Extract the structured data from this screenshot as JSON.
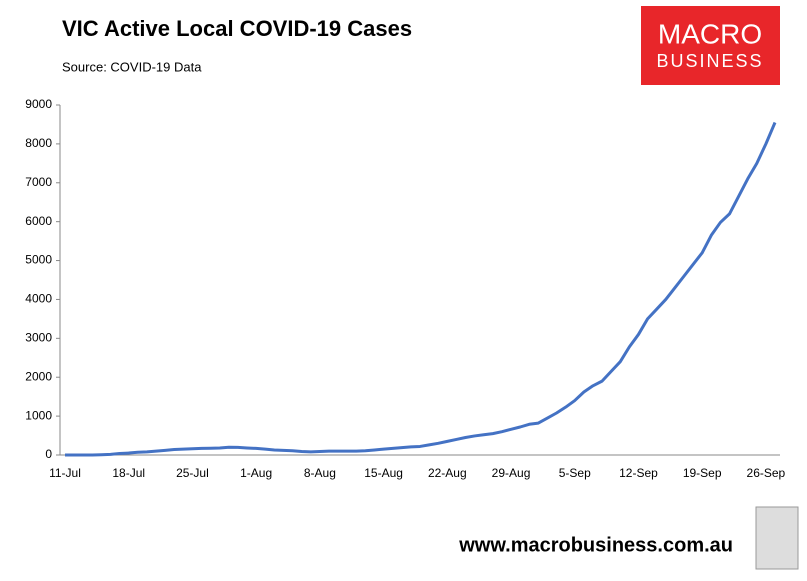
{
  "chart_data": {
    "type": "line",
    "title": "VIC Active Local COVID-19 Cases",
    "subtitle": "Source: COVID-19 Data",
    "categories": [
      "11-Jul",
      null,
      null,
      null,
      null,
      null,
      null,
      "18-Jul",
      null,
      null,
      null,
      null,
      null,
      null,
      "25-Jul",
      null,
      null,
      null,
      null,
      null,
      null,
      "1-Aug",
      null,
      null,
      null,
      null,
      null,
      null,
      "8-Aug",
      null,
      null,
      null,
      null,
      null,
      null,
      "15-Aug",
      null,
      null,
      null,
      null,
      null,
      null,
      "22-Aug",
      null,
      null,
      null,
      null,
      null,
      null,
      "29-Aug",
      null,
      null,
      null,
      null,
      null,
      null,
      "5-Sep",
      null,
      null,
      null,
      null,
      null,
      null,
      "12-Sep",
      null,
      null,
      null,
      null,
      null,
      null,
      "19-Sep",
      null,
      null,
      null,
      null,
      null,
      null,
      "26-Sep",
      null
    ],
    "series": [
      {
        "name": "Active local cases",
        "color": "#4472c4",
        "values": [
          0,
          0,
          0,
          0,
          5,
          15,
          40,
          50,
          70,
          80,
          100,
          120,
          140,
          150,
          160,
          170,
          175,
          180,
          200,
          195,
          180,
          170,
          150,
          130,
          120,
          110,
          90,
          80,
          90,
          100,
          100,
          100,
          100,
          110,
          130,
          150,
          170,
          190,
          210,
          220,
          260,
          300,
          350,
          400,
          450,
          490,
          520,
          550,
          600,
          660,
          720,
          790,
          820,
          950,
          1080,
          1230,
          1400,
          1620,
          1780,
          1900,
          2150,
          2400,
          2780,
          3100,
          3500,
          3750,
          4000,
          4300,
          4600,
          4900,
          5200,
          5650,
          5980,
          6200,
          6650,
          7100,
          7500,
          8000,
          8550
        ]
      }
    ],
    "ylim": [
      0,
      9000
    ],
    "yticks": [
      0,
      1000,
      2000,
      3000,
      4000,
      5000,
      6000,
      7000,
      8000,
      9000
    ],
    "grid": false
  },
  "logo": {
    "line1": "MACRO",
    "line2": "BUSINESS"
  },
  "footer": {
    "url": "www.macrobusiness.com.au"
  }
}
